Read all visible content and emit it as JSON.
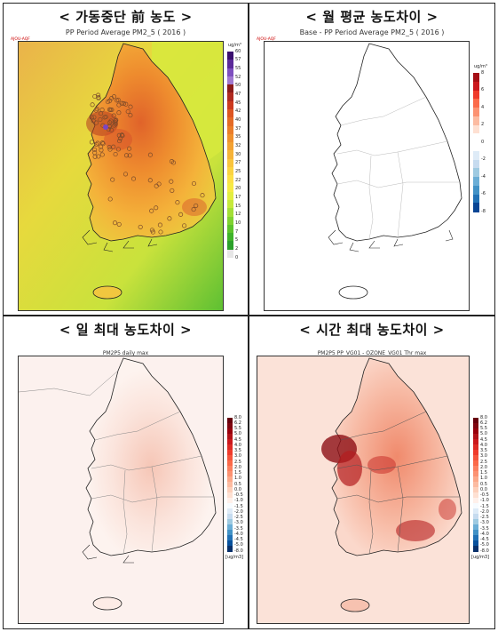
{
  "panels": [
    {
      "id": "pre-shutdown",
      "title": "< 가동중단 前 농도 >",
      "subtitle": "PP Period Average PM2_5 ( 2016 )",
      "tag": "AJOU-AQF",
      "unit": "ug/m³",
      "colorbar": {
        "labels": [
          "60",
          "57",
          "55",
          "52",
          "50",
          "47",
          "45",
          "42",
          "40",
          "37",
          "35",
          "32",
          "30",
          "27",
          "25",
          "22",
          "20",
          "17",
          "15",
          "12",
          "10",
          "7",
          "5",
          "2",
          "0"
        ],
        "colors": [
          "#3a0f6e",
          "#5b2a99",
          "#7e4fbf",
          "#a078cf",
          "#8b1a1a",
          "#b02a20",
          "#cc3a1f",
          "#dd5522",
          "#e46a26",
          "#ea7d2a",
          "#ef902e",
          "#f3a233",
          "#f6b338",
          "#f9c43d",
          "#fbd342",
          "#fde047",
          "#f6ea45",
          "#e3ee40",
          "#c6e93b",
          "#a3df36",
          "#7fd231",
          "#5cc32c",
          "#3fb32a",
          "#2ba02a",
          "#e6e6e6"
        ]
      }
    },
    {
      "id": "monthly-avg-diff",
      "title": "< 월 평균 농도차이 >",
      "subtitle": "Base - PP Period Average PM2_5 ( 2016 )",
      "tag": "AJOU-AQF",
      "unit": "ug/m³",
      "colorbar": {
        "labels": [
          "8",
          "6",
          "4",
          "2",
          "0",
          "-2",
          "-4",
          "-6",
          "-8"
        ],
        "colors": [
          "#a50f15",
          "#cb181d",
          "#ef3b2c",
          "#fb6a4a",
          "#fc9272",
          "#fcbba1",
          "#fee0d2",
          "#ffffff",
          "#ffffff",
          "#deebf7",
          "#c6dbef",
          "#9ecae1",
          "#6baed6",
          "#4292c6",
          "#2171b5",
          "#084594"
        ]
      }
    },
    {
      "id": "daily-max-diff",
      "title": "< 일 최대 농도차이 >",
      "subtitle": "PM2P5 daily max",
      "unit": "[ug/m3]",
      "colorbar": {
        "labels": [
          "8.0",
          "6.2",
          "5.5",
          "5.0",
          "4.5",
          "4.0",
          "3.5",
          "3.0",
          "2.5",
          "2.0",
          "1.5",
          "1.0",
          "0.5",
          "0.0",
          "-0.5",
          "-1.0",
          "-1.5",
          "-2.0",
          "-2.5",
          "-3.0",
          "-3.5",
          "-4.0",
          "-4.5",
          "-5.0",
          "-8.0"
        ],
        "colors": [
          "#67000d",
          "#7f0510",
          "#99000d",
          "#b11218",
          "#cb181d",
          "#dd2a25",
          "#ef3b2c",
          "#f5553d",
          "#fb6a4a",
          "#fc8161",
          "#fc9272",
          "#fca98a",
          "#fcbba1",
          "#fdd0bb",
          "#fee0d2",
          "#fff0ea",
          "#f7fbff",
          "#deebf7",
          "#c6dbef",
          "#9ecae1",
          "#6baed6",
          "#4292c6",
          "#2171b5",
          "#08519c",
          "#08306b"
        ]
      }
    },
    {
      "id": "hourly-max-diff",
      "title": "< 시간 최대 농도차이 >",
      "subtitle": "PM2P5 PP_VG01 - OZONE_VG01 Thr max",
      "unit": "[ug/m3]",
      "colorbar": {
        "labels": [
          "8.0",
          "6.2",
          "5.5",
          "5.0",
          "4.5",
          "4.0",
          "3.5",
          "3.0",
          "2.5",
          "2.0",
          "1.5",
          "1.0",
          "0.5",
          "0.0",
          "-0.5",
          "-1.0",
          "-1.5",
          "-2.0",
          "-2.5",
          "-3.0",
          "-3.5",
          "-4.0",
          "-4.5",
          "-5.0",
          "-8.0"
        ],
        "colors": [
          "#67000d",
          "#7f0510",
          "#99000d",
          "#b11218",
          "#cb181d",
          "#dd2a25",
          "#ef3b2c",
          "#f5553d",
          "#fb6a4a",
          "#fc8161",
          "#fc9272",
          "#fca98a",
          "#fcbba1",
          "#fdd0bb",
          "#fee0d2",
          "#fff0ea",
          "#f7fbff",
          "#deebf7",
          "#c6dbef",
          "#9ecae1",
          "#6baed6",
          "#4292c6",
          "#2171b5",
          "#08519c",
          "#08306b"
        ]
      }
    }
  ]
}
